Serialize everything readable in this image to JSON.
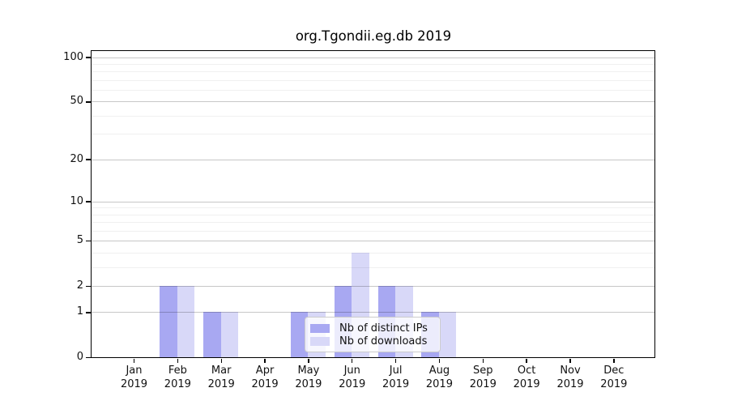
{
  "chart_data": {
    "type": "bar",
    "title": "org.Tgondii.eg.db 2019",
    "year_label": "2019",
    "categories": [
      "Jan",
      "Feb",
      "Mar",
      "Apr",
      "May",
      "Jun",
      "Jul",
      "Aug",
      "Sep",
      "Oct",
      "Nov",
      "Dec"
    ],
    "series": [
      {
        "name": "Nb of distinct IPs",
        "color": "#a8a8f2",
        "values": [
          0,
          2,
          1,
          0,
          1,
          2,
          2,
          1,
          0,
          0,
          0,
          0
        ]
      },
      {
        "name": "Nb of downloads",
        "color": "#d8d8f8",
        "values": [
          0,
          2,
          1,
          0,
          1,
          4,
          2,
          1,
          0,
          0,
          0,
          0
        ]
      }
    ],
    "xlabel": "",
    "ylabel": "",
    "yscale": "log1p",
    "ylim": [
      0,
      110
    ],
    "y_major_ticks": [
      100,
      50,
      20,
      10,
      5,
      2,
      1,
      0
    ],
    "y_minor_gridlines": [
      3,
      4,
      6,
      7,
      8,
      9,
      30,
      40,
      60,
      70,
      80,
      90
    ],
    "grid": "on",
    "legend_position": "lower center"
  }
}
